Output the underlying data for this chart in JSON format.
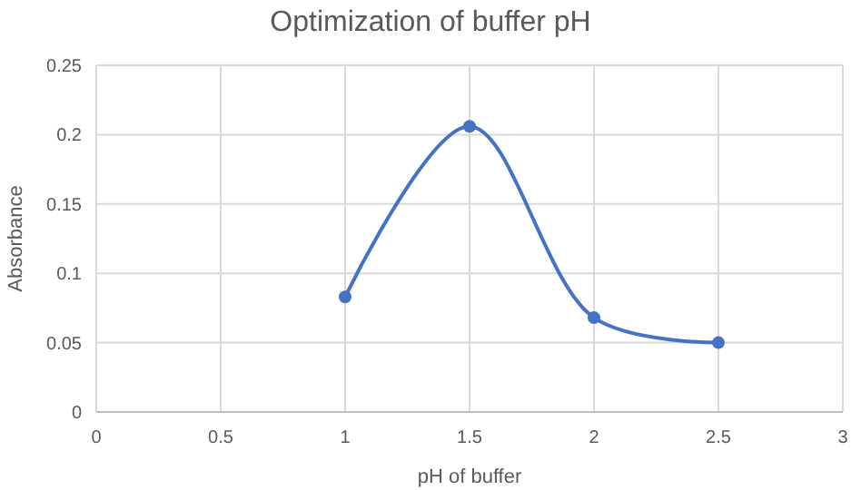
{
  "chart_data": {
    "type": "line",
    "title": "Optimization of buffer pH",
    "xlabel": "pH of buffer",
    "ylabel": "Absorbance",
    "x": [
      1,
      1.5,
      2,
      2.5
    ],
    "series": [
      {
        "color": "#4472c4",
        "values": [
          0.083,
          0.206,
          0.068,
          0.05
        ]
      }
    ],
    "xlim": [
      0,
      3
    ],
    "xticks": [
      0,
      0.5,
      1,
      1.5,
      2,
      2.5,
      3
    ],
    "ylim": [
      0,
      0.25
    ],
    "yticks": [
      0,
      0.05,
      0.1,
      0.15,
      0.2,
      0.25
    ],
    "grid": true,
    "marker": "circle",
    "line_style": "solid"
  }
}
